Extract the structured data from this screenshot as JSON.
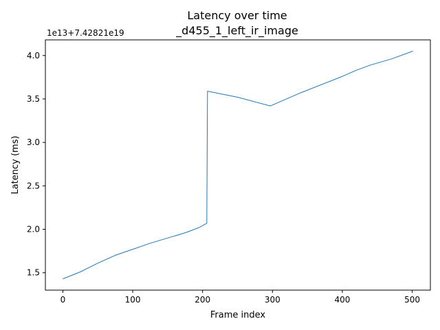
{
  "chart_data": {
    "type": "line",
    "title": "Latency over time",
    "subtitle": "_d455_1_left_ir_image",
    "xlabel": "Frame index",
    "ylabel": "Latency (ms)",
    "y_offset_label": "1e13+7.42821e19",
    "xlim": [
      -25,
      526
    ],
    "ylim": [
      1.3,
      4.18
    ],
    "x_ticks": [
      0,
      100,
      200,
      300,
      400,
      500
    ],
    "y_ticks": [
      1.5,
      2.0,
      2.5,
      3.0,
      3.5,
      4.0
    ],
    "x_tick_labels": [
      "0",
      "100",
      "200",
      "300",
      "400",
      "500"
    ],
    "y_tick_labels": [
      "1.5",
      "2.0",
      "2.5",
      "3.0",
      "3.5",
      "4.0"
    ],
    "grid": false,
    "series": [
      {
        "color": "#1f77b4",
        "x": [
          0,
          25,
          50,
          75,
          100,
          125,
          150,
          175,
          195,
          206,
          207,
          250,
          297,
          340,
          400,
          420,
          440,
          470,
          501
        ],
        "y": [
          1.43,
          1.51,
          1.61,
          1.7,
          1.77,
          1.84,
          1.9,
          1.96,
          2.02,
          2.07,
          3.59,
          3.52,
          3.42,
          3.57,
          3.76,
          3.83,
          3.89,
          3.96,
          4.05
        ]
      }
    ]
  }
}
